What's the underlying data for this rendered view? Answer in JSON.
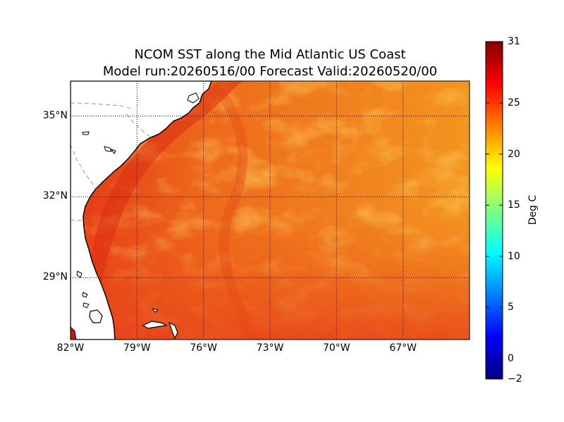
{
  "title": {
    "line1": "NCOM SST along the Mid Atlantic US Coast",
    "line2": "Model run:20260516/00 Forecast Valid:20260520/00"
  },
  "map": {
    "lon_range": [
      -82,
      -64
    ],
    "lat_range": [
      26.7,
      36.3
    ],
    "lat_ticks": [
      {
        "value": 35,
        "label": "35°N"
      },
      {
        "value": 32,
        "label": "32°N"
      },
      {
        "value": 29,
        "label": "29°N"
      }
    ],
    "lon_ticks": [
      {
        "value": -82,
        "label": "82°W"
      },
      {
        "value": -79,
        "label": "79°W"
      },
      {
        "value": -76,
        "label": "76°W"
      },
      {
        "value": -73,
        "label": "73°W"
      },
      {
        "value": -70,
        "label": "70°W"
      },
      {
        "value": -67,
        "label": "67°W"
      }
    ],
    "gridlines": "dotted",
    "land_color": "#ffffff",
    "coastline_color": "#000000",
    "state_border_color": "#999999"
  },
  "colorbar": {
    "range": [
      -2,
      31
    ],
    "ticks": [
      {
        "value": 31,
        "label": "31"
      },
      {
        "value": 25,
        "label": "25"
      },
      {
        "value": 20,
        "label": "20"
      },
      {
        "value": 15,
        "label": "15"
      },
      {
        "value": 10,
        "label": "10"
      },
      {
        "value": 5,
        "label": "5"
      },
      {
        "value": 0,
        "label": "0"
      },
      {
        "value": -2,
        "label": "−2"
      }
    ],
    "label": "Deg C",
    "colormap": "jet",
    "colors": [
      "#00007f",
      "#0000ff",
      "#007fff",
      "#00ffff",
      "#7fff7f",
      "#ffff00",
      "#ff7f00",
      "#ff0000",
      "#7f0000"
    ]
  },
  "field": {
    "warm_color": "#e23a14",
    "mid_color": "#f07a1e",
    "cool_color": "#f5a524"
  }
}
